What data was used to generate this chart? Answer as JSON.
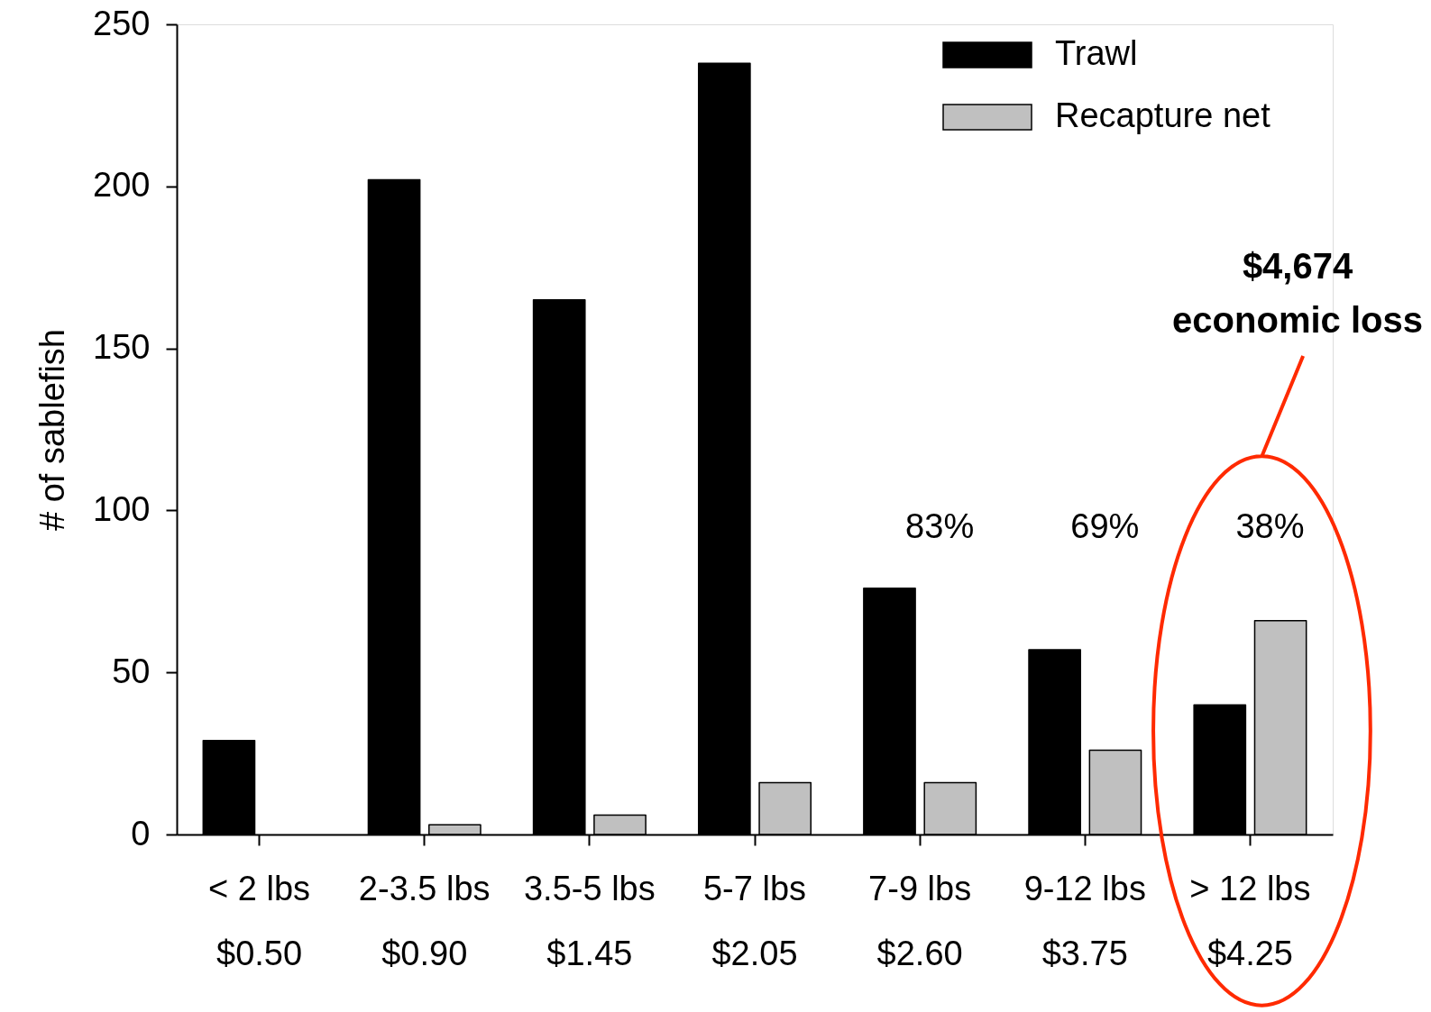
{
  "chart_data": {
    "type": "bar",
    "ylabel": "# of sablefish",
    "categories": [
      "< 2 lbs\n$0.50",
      "2-3.5 lbs\n$0.90",
      "3.5-5 lbs\n$1.45",
      "5-7 lbs\n$2.05",
      "7-9 lbs\n$2.60",
      "9-12 lbs\n$3.75",
      "> 12 lbs\n$4.25"
    ],
    "series": [
      {
        "name": "Trawl",
        "color": "#000000",
        "values": [
          29,
          202,
          165,
          238,
          76,
          57,
          40
        ]
      },
      {
        "name": "Recapture net",
        "color": "#c0c0c0",
        "values": [
          null,
          3,
          6,
          16,
          16,
          26,
          66
        ]
      }
    ],
    "ylim": [
      0,
      250
    ],
    "yticks": [
      0,
      50,
      100,
      150,
      200,
      250
    ],
    "legend": "top right",
    "annotations": [
      "83%",
      "69%",
      "38%",
      "$4,674\neconomic loss"
    ]
  }
}
